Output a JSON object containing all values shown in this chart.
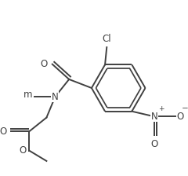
{
  "bg_color": "#ffffff",
  "line_color": "#404040",
  "line_width": 1.4,
  "font_size": 8.5,
  "figsize": [
    2.4,
    2.24
  ],
  "dpi": 100,
  "xlim": [
    0.0,
    1.0
  ],
  "ylim": [
    0.0,
    1.0
  ]
}
